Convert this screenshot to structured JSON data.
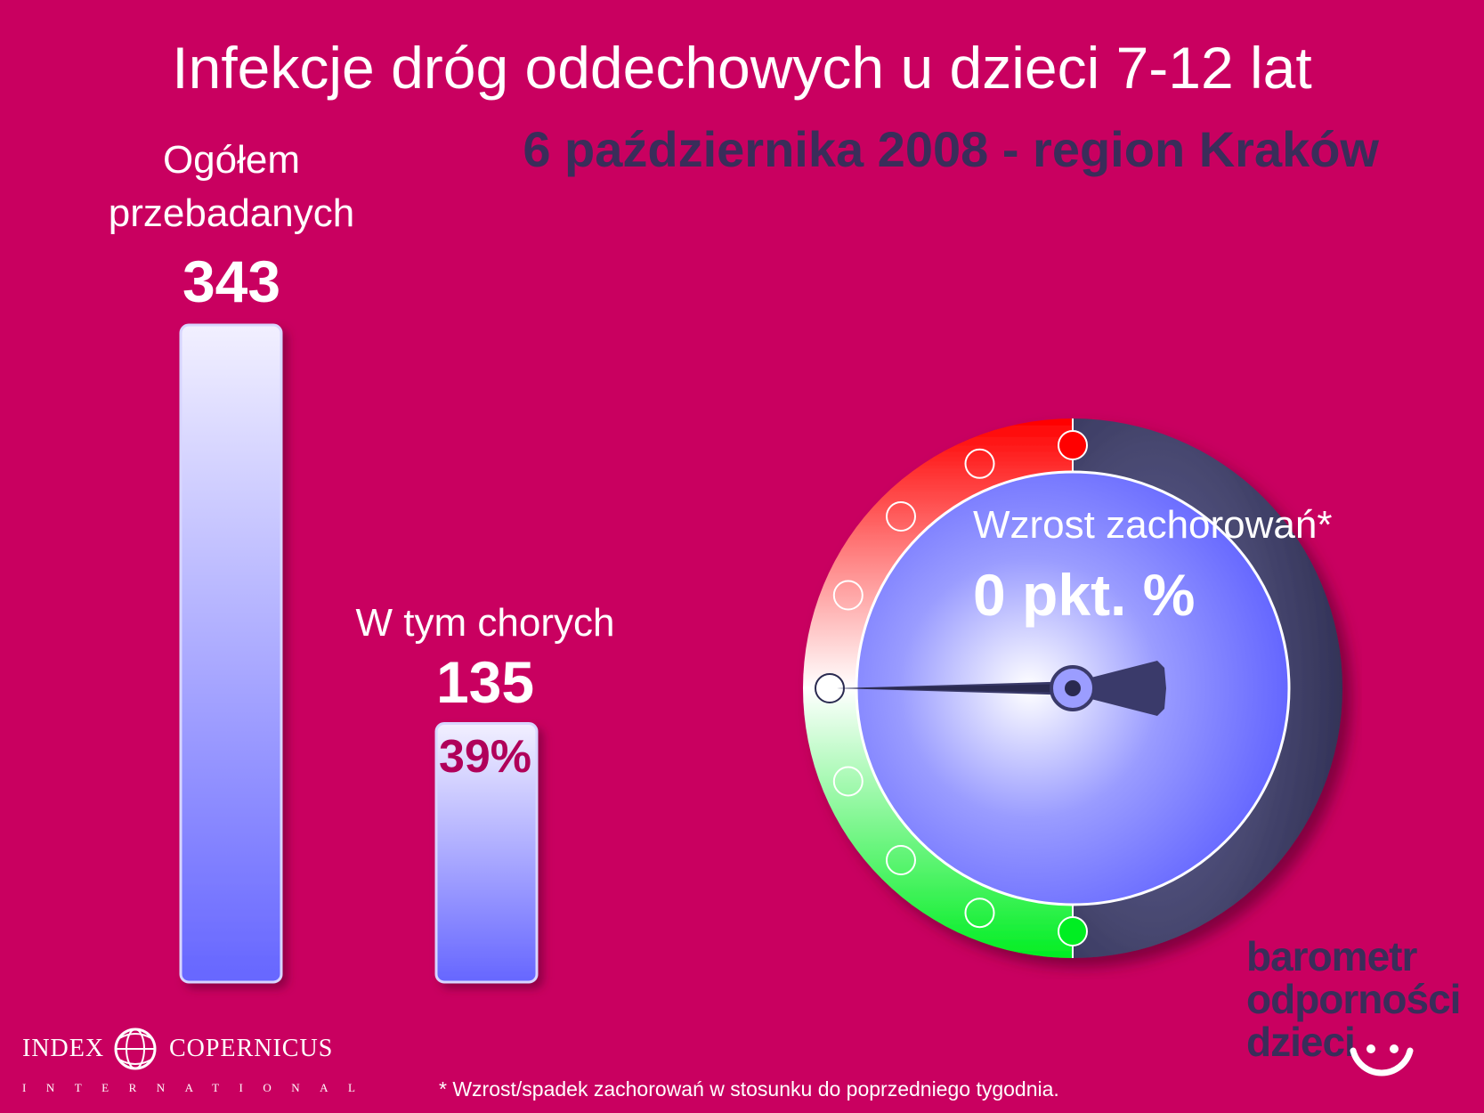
{
  "title": "Infekcje dróg oddechowych u dzieci 7-12 lat",
  "subtitle": "6 października 2008 - region Kraków",
  "chart_data": {
    "type": "bar",
    "categories": [
      "Ogółem przebadanych",
      "W tym chorych"
    ],
    "values": [
      343,
      135
    ],
    "bar_labels": {
      "total_line1": "Ogółem",
      "total_line2": "przebadanych",
      "total_value": "343",
      "sick_line1": "W tym chorych",
      "sick_value": "135",
      "sick_percent": "39%"
    },
    "ylim": [
      0,
      343
    ]
  },
  "gauge": {
    "label": "Wzrost zachorowań*",
    "value_text": "0 pkt. %",
    "value": 0,
    "colors": {
      "increase": "#ff0000",
      "decrease": "#00ee22",
      "face": "#7a7cff",
      "rim": "#3b3b66"
    }
  },
  "footnote": "* Wzrost/spadek zachorowań w stosunku do poprzedniego tygodnia.",
  "logo_left": {
    "word1": "INDEX",
    "word2": "COPERNICUS",
    "sub": "INTERNATIONAL"
  },
  "logo_right": {
    "line1": "barometr",
    "line2": "odporności",
    "line3": "dzieci"
  }
}
